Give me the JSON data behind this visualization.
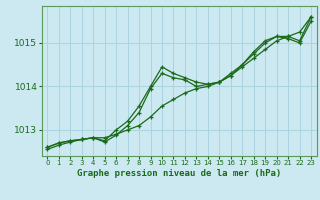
{
  "title": "Graphe pression niveau de la mer (hPa)",
  "bg_color": "#cce8f0",
  "grid_color": "#aad4e0",
  "line_color": "#1a6b1a",
  "xlim": [
    -0.5,
    23.5
  ],
  "ylim": [
    1012.4,
    1015.85
  ],
  "yticks": [
    1013,
    1014,
    1015
  ],
  "xticks": [
    0,
    1,
    2,
    3,
    4,
    5,
    6,
    7,
    8,
    9,
    10,
    11,
    12,
    13,
    14,
    15,
    16,
    17,
    18,
    19,
    20,
    21,
    22,
    23
  ],
  "series1": {
    "x": [
      0,
      1,
      2,
      3,
      4,
      5,
      6,
      7,
      8,
      9,
      10,
      11,
      12,
      13,
      14,
      15,
      16,
      17,
      18,
      19,
      20,
      21,
      22,
      23
    ],
    "y": [
      1012.55,
      1012.65,
      1012.72,
      1012.78,
      1012.82,
      1012.82,
      1012.9,
      1013.0,
      1013.1,
      1013.3,
      1013.55,
      1013.7,
      1013.85,
      1013.95,
      1014.0,
      1014.1,
      1014.25,
      1014.45,
      1014.65,
      1014.85,
      1015.05,
      1015.15,
      1015.25,
      1015.6
    ]
  },
  "series2": {
    "x": [
      0,
      1,
      2,
      3,
      4,
      5,
      6,
      7,
      8,
      9,
      10,
      11,
      12,
      13,
      14,
      15,
      16,
      17,
      18,
      19,
      20,
      21,
      22,
      23
    ],
    "y": [
      1012.6,
      1012.7,
      1012.75,
      1012.78,
      1012.82,
      1012.75,
      1013.0,
      1013.2,
      1013.55,
      1014.0,
      1014.45,
      1014.3,
      1014.2,
      1014.1,
      1014.05,
      1014.1,
      1014.25,
      1014.5,
      1014.75,
      1015.0,
      1015.15,
      1015.15,
      1015.05,
      1015.6
    ]
  },
  "series3": {
    "x": [
      0,
      1,
      2,
      3,
      4,
      5,
      6,
      7,
      8,
      9,
      10,
      11,
      12,
      13,
      14,
      15,
      16,
      17,
      18,
      19,
      20,
      21,
      22,
      23
    ],
    "y": [
      1012.6,
      1012.7,
      1012.75,
      1012.78,
      1012.82,
      1012.72,
      1012.88,
      1013.1,
      1013.4,
      1013.95,
      1014.3,
      1014.2,
      1014.15,
      1014.0,
      1014.05,
      1014.1,
      1014.3,
      1014.5,
      1014.8,
      1015.05,
      1015.15,
      1015.1,
      1015.0,
      1015.5
    ]
  }
}
